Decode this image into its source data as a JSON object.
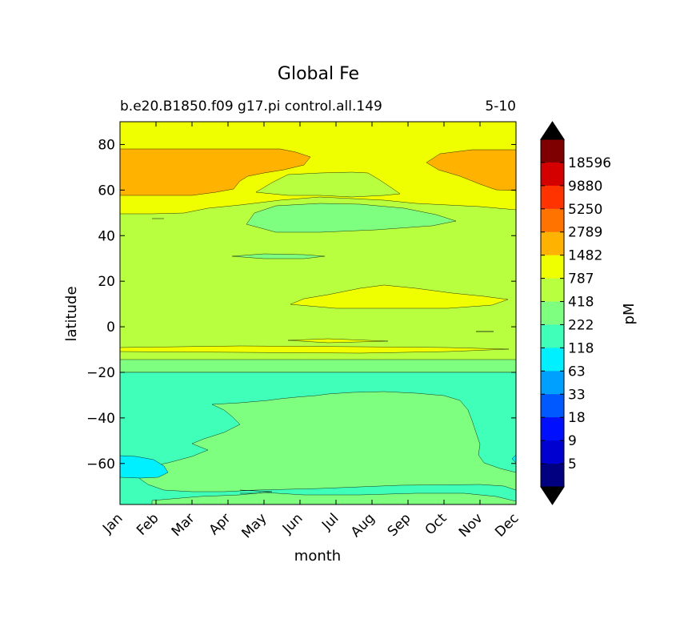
{
  "chart_data": {
    "type": "contour",
    "title": "Global Fe",
    "subtitle_left": "b.e20.B1850.f09 g17.pi control.all.149",
    "subtitle_right": "5-10",
    "xlabel": "month",
    "ylabel": "latitude",
    "x_categories": [
      "Jan",
      "Feb",
      "Mar",
      "Apr",
      "May",
      "Jun",
      "Jul",
      "Aug",
      "Sep",
      "Oct",
      "Nov",
      "Dec"
    ],
    "y_ticks": [
      "80",
      "60",
      "40",
      "20",
      "0",
      "−20",
      "−40",
      "−60"
    ],
    "y_tick_values": [
      80,
      60,
      40,
      20,
      0,
      -20,
      -40,
      -60
    ],
    "ylim": [
      -78,
      90
    ],
    "colorbar": {
      "label": "pM",
      "levels": [
        "18596",
        "9880",
        "5250",
        "2789",
        "1482",
        "787",
        "418",
        "222",
        "118",
        "63",
        "33",
        "18",
        "9",
        "5"
      ],
      "colors_top_to_bottom": [
        "#7f0000",
        "#d40000",
        "#ff3300",
        "#ff7300",
        "#ffb300",
        "#f0ff00",
        "#b8ff40",
        "#7fff7f",
        "#40ffb8",
        "#00f0ff",
        "#00a0ff",
        "#0058ff",
        "#0010ff",
        "#0000d0",
        "#000080"
      ],
      "extend_top_color": "#000000",
      "extend_bottom_color": "#000000"
    },
    "regions": [
      {
        "level": "787-1482",
        "color": "#f0ff00",
        "description": "background north of ~50N"
      },
      {
        "level": "1482-2789",
        "color": "#ffb300",
        "description": "high latitude max in winter, 57N-77N"
      },
      {
        "level": "222-418",
        "color": "#7fff7f",
        "description": "summer patch near 40-50N"
      },
      {
        "level": "787-1482",
        "color": "#f0ff00",
        "description": "tropical band near 10N Jul-Nov"
      },
      {
        "level": "222-418",
        "color": "#7fff7f",
        "description": "band near -15 to -20"
      },
      {
        "level": "118-222",
        "color": "#40ffb8",
        "description": "southern ocean south of -20"
      },
      {
        "level": "63-118",
        "color": "#00f0ff",
        "description": "Jan patch near -60"
      }
    ]
  }
}
